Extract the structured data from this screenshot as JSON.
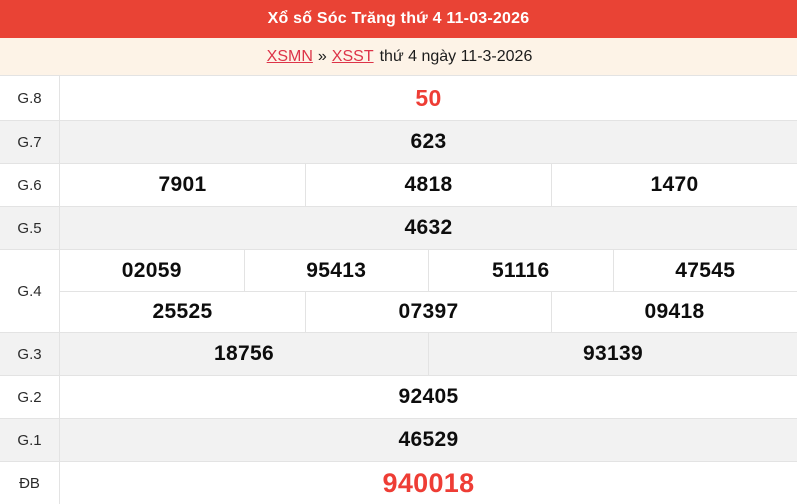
{
  "header": {
    "title": "Xổ số Sóc Trăng thứ 4 11-03-2026"
  },
  "breadcrumb": {
    "link_region": "XSMN",
    "separator": "»",
    "link_province": "XSST",
    "date_text": "thứ 4 ngày 11-3-2026"
  },
  "colors": {
    "header_bg": "#e94335",
    "breadcrumb_bg": "#fdf3e7",
    "link_red": "#dd3348",
    "number_red": "#ee3d35",
    "row_alt_bg": "#f2f2f2",
    "border": "#e3e3e3"
  },
  "results": {
    "rows": [
      {
        "label": "G.8",
        "highlight": true,
        "lines": [
          [
            "50"
          ]
        ]
      },
      {
        "label": "G.7",
        "highlight": false,
        "lines": [
          [
            "623"
          ]
        ]
      },
      {
        "label": "G.6",
        "highlight": false,
        "lines": [
          [
            "7901",
            "4818",
            "1470"
          ]
        ]
      },
      {
        "label": "G.5",
        "highlight": false,
        "lines": [
          [
            "4632"
          ]
        ]
      },
      {
        "label": "G.4",
        "highlight": false,
        "lines": [
          [
            "02059",
            "95413",
            "51116",
            "47545"
          ],
          [
            "25525",
            "07397",
            "09418"
          ]
        ]
      },
      {
        "label": "G.3",
        "highlight": false,
        "lines": [
          [
            "18756",
            "93139"
          ]
        ]
      },
      {
        "label": "G.2",
        "highlight": false,
        "lines": [
          [
            "92405"
          ]
        ]
      },
      {
        "label": "G.1",
        "highlight": false,
        "lines": [
          [
            "46529"
          ]
        ]
      },
      {
        "label": "ĐB",
        "highlight": true,
        "lines": [
          [
            "940018"
          ]
        ]
      }
    ]
  }
}
